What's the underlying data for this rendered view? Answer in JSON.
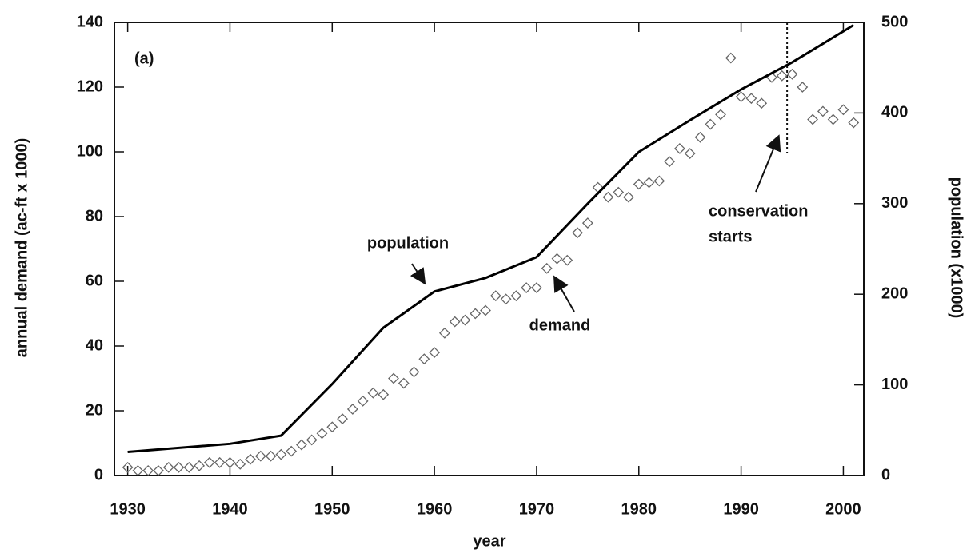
{
  "chart_data": {
    "type": "line",
    "xlabel": "year",
    "ylabel": "annual demand (ac-ft x 1000)",
    "y2label": "population (x1000)",
    "xlim": [
      1928.7,
      2002
    ],
    "xticks": [
      1930,
      1940,
      1950,
      1960,
      1970,
      1980,
      1990,
      2000
    ],
    "ylim": [
      0,
      140
    ],
    "yticks": [
      0,
      20,
      40,
      60,
      80,
      100,
      120,
      140
    ],
    "y2lim": [
      0,
      500
    ],
    "y2ticks": [
      0,
      100,
      200,
      300,
      400,
      500
    ],
    "series": [
      {
        "name": "demand",
        "type": "scatter",
        "marker": "diamond",
        "color": "#666666",
        "x": [
          1930,
          1931,
          1932,
          1933,
          1934,
          1935,
          1936,
          1937,
          1938,
          1939,
          1940,
          1941,
          1942,
          1943,
          1944,
          1945,
          1946,
          1947,
          1948,
          1949,
          1950,
          1951,
          1952,
          1953,
          1954,
          1955,
          1956,
          1957,
          1958,
          1959,
          1960,
          1961,
          1962,
          1963,
          1964,
          1965,
          1966,
          1967,
          1968,
          1969,
          1970,
          1971,
          1972,
          1973,
          1974,
          1975,
          1976,
          1977,
          1978,
          1979,
          1980,
          1981,
          1982,
          1983,
          1984,
          1985,
          1986,
          1987,
          1988,
          1989,
          1990,
          1991,
          1992,
          1993,
          1994,
          1995,
          1996,
          1997,
          1998,
          1999,
          2000,
          2001
        ],
        "values": [
          2.5,
          1.5,
          1.5,
          1.5,
          2.5,
          2.5,
          2.5,
          3,
          4,
          4,
          4,
          3.5,
          5,
          6,
          6,
          6.5,
          7.5,
          9.5,
          11,
          13,
          15,
          17.5,
          20.5,
          23,
          25.5,
          25,
          30,
          28.5,
          32,
          36,
          38,
          44,
          47.5,
          48,
          50,
          51,
          55.5,
          54.5,
          55.5,
          58,
          58,
          64,
          67,
          66.5,
          75,
          78,
          89,
          86,
          87.5,
          86,
          90,
          90.5,
          91,
          97,
          101,
          99.5,
          104.5,
          108.5,
          111.5,
          129,
          117,
          116.5,
          115,
          123,
          123.5,
          124,
          120,
          110,
          112.5,
          110,
          113,
          109
        ]
      },
      {
        "name": "population",
        "type": "line",
        "axis": "y2",
        "color": "#000000",
        "x": [
          1930,
          1940,
          1945,
          1950,
          1955,
          1960,
          1965,
          1970,
          1975,
          1980,
          1985,
          1990,
          1995,
          2001
        ],
        "values": [
          26,
          35,
          44,
          101,
          163,
          203,
          218,
          241,
          300,
          357,
          392,
          426,
          456,
          497
        ]
      }
    ],
    "annotations": [
      "(a)",
      "population",
      "demand",
      "conservation",
      "starts"
    ],
    "conservation_start": 1994.5
  }
}
